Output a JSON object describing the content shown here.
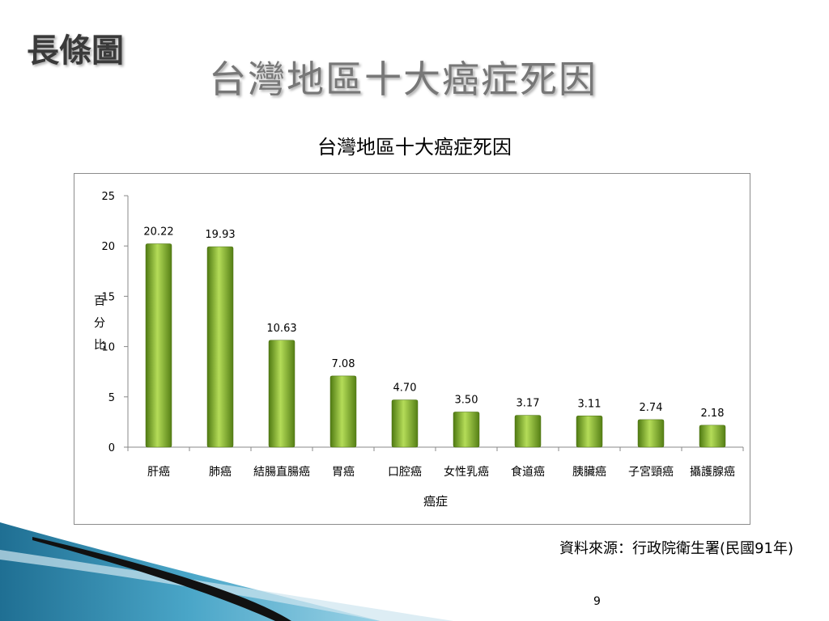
{
  "slide": {
    "label": "長條圖",
    "title": "台灣地區十大癌症死因",
    "source": "資料來源：行政院衛生署(民國91年)",
    "page_number": "9"
  },
  "chart_data": {
    "type": "bar",
    "title": "台灣地區十大癌症死因",
    "xlabel": "癌症",
    "ylabel": "百分比",
    "ylim": [
      0,
      25
    ],
    "yticks": [
      "0",
      "5",
      "10",
      "15",
      "20",
      "25"
    ],
    "categories": [
      "肝癌",
      "肺癌",
      "結腸直腸癌",
      "胃癌",
      "口腔癌",
      "女性乳癌",
      "食道癌",
      "胰臟癌",
      "子宮頸癌",
      "攝護腺癌"
    ],
    "values": [
      20.22,
      19.93,
      10.63,
      7.08,
      4.7,
      3.5,
      3.17,
      3.11,
      2.74,
      2.18
    ],
    "data_labels": [
      "20.22",
      "19.93",
      "10.63",
      "7.08",
      "4.70",
      "3.50",
      "3.17",
      "3.11",
      "2.74",
      "2.18"
    ],
    "bar_color": "#8ab83a",
    "grid": false,
    "legend": "none"
  }
}
